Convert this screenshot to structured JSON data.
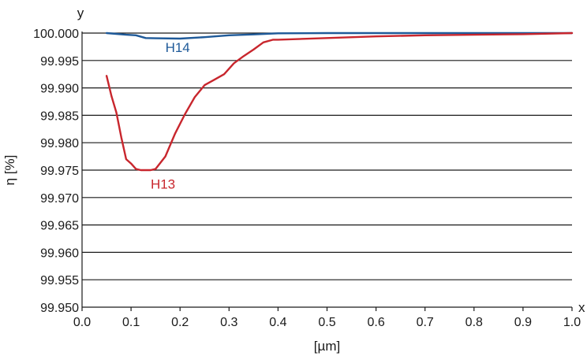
{
  "chart_data": {
    "type": "line",
    "x_axis": {
      "name": "x",
      "label": "[µm]",
      "range": [
        0.0,
        1.0
      ],
      "ticks": [
        0.0,
        0.1,
        0.2,
        0.3,
        0.4,
        0.5,
        0.6,
        0.7,
        0.8,
        0.9,
        1.0
      ],
      "tick_labels": [
        "0.0",
        "0.1",
        "0.2",
        "0.3",
        "0.4",
        "0.5",
        "0.6",
        "0.7",
        "0.8",
        "0.9",
        "1.0"
      ]
    },
    "y_axis": {
      "name": "y",
      "label": "η [%]",
      "range": [
        99.95,
        100.0
      ],
      "ticks": [
        99.95,
        99.955,
        99.96,
        99.965,
        99.97,
        99.975,
        99.98,
        99.985,
        99.99,
        99.995,
        100.0
      ],
      "tick_labels": [
        "99.950",
        "99.955",
        "99.960",
        "99.965",
        "99.970",
        "99.975",
        "99.980",
        "99.985",
        "99.990",
        "99.995",
        "100.000"
      ]
    },
    "grid": "horizontal",
    "series": [
      {
        "name": "H14",
        "color": "#1f5a99",
        "label_at": [
          0.17,
          99.9974
        ],
        "x": [
          0.05,
          0.07,
          0.09,
          0.11,
          0.13,
          0.15,
          0.2,
          0.25,
          0.3,
          0.35,
          0.4,
          0.5,
          0.6,
          0.7,
          0.8,
          0.9,
          1.0
        ],
        "y": [
          100.0,
          99.99985,
          99.9997,
          99.9996,
          99.9991,
          99.99905,
          99.999,
          99.99925,
          99.9996,
          99.99975,
          99.99995,
          100.0,
          100.0,
          100.0,
          100.0,
          100.0,
          100.0
        ]
      },
      {
        "name": "H13",
        "color": "#c8262d",
        "label_at": [
          0.14,
          99.9725
        ],
        "x": [
          0.05,
          0.06,
          0.07,
          0.08,
          0.09,
          0.1,
          0.11,
          0.12,
          0.13,
          0.14,
          0.15,
          0.17,
          0.19,
          0.21,
          0.23,
          0.25,
          0.27,
          0.29,
          0.31,
          0.33,
          0.35,
          0.37,
          0.39,
          0.4,
          0.5,
          0.6,
          0.7,
          0.8,
          0.9,
          1.0
        ],
        "y": [
          99.9922,
          99.9885,
          99.9855,
          99.981,
          99.977,
          99.9762,
          99.9752,
          99.975,
          99.975,
          99.975,
          99.9752,
          99.9775,
          99.9817,
          99.9852,
          99.9883,
          99.9905,
          99.9915,
          99.9925,
          99.9945,
          99.9958,
          99.997,
          99.9983,
          99.9988,
          99.9988,
          99.9991,
          99.9994,
          99.9996,
          99.9997,
          99.9998,
          100.0
        ]
      }
    ]
  }
}
